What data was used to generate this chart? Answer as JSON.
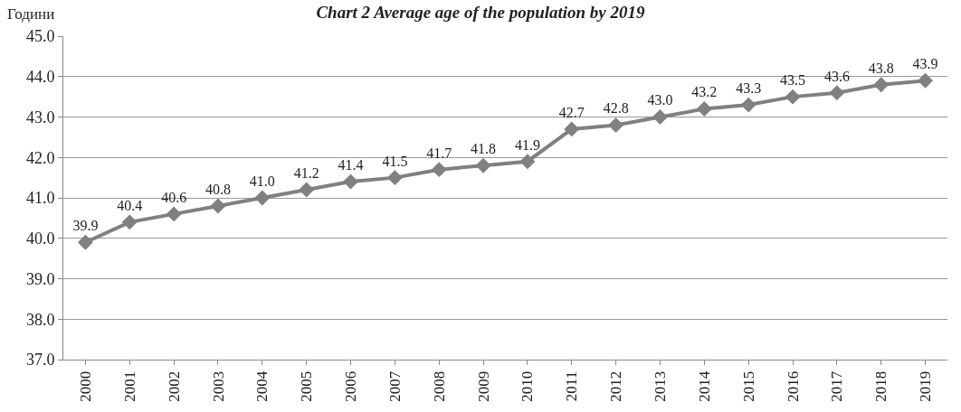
{
  "chart_data": {
    "type": "line",
    "title": "Chart 2 Average age of the population by 2019",
    "ylabel": "Години",
    "categories": [
      "2000",
      "2001",
      "2002",
      "2003",
      "2004",
      "2005",
      "2006",
      "2007",
      "2008",
      "2009",
      "2010",
      "2011",
      "2012",
      "2013",
      "2014",
      "2015",
      "2016",
      "2017",
      "2018",
      "2019"
    ],
    "series": [
      {
        "color": "#808080",
        "values": [
          39.9,
          40.4,
          40.6,
          40.8,
          41.0,
          41.2,
          41.4,
          41.5,
          41.7,
          41.8,
          41.9,
          42.7,
          42.8,
          43.0,
          43.2,
          43.3,
          43.5,
          43.6,
          43.8,
          43.9
        ]
      }
    ],
    "value_labels": [
      "39.9",
      "40.4",
      "40.6",
      "40.8",
      "41.0",
      "41.2",
      "41.4",
      "41.5",
      "41.7",
      "41.8",
      "41.9",
      "42.7",
      "42.8",
      "43.0",
      "43.2",
      "43.3",
      "43.5",
      "43.6",
      "43.8",
      "43.9"
    ],
    "ylim": [
      37,
      45
    ],
    "yticks": [
      {
        "value": 37,
        "label": "37.0"
      },
      {
        "value": 38,
        "label": "38.0"
      },
      {
        "value": 39,
        "label": "39.0"
      },
      {
        "value": 40,
        "label": "40.0"
      },
      {
        "value": 41,
        "label": "41.0"
      },
      {
        "value": 42,
        "label": "42.0"
      },
      {
        "value": 43,
        "label": "43.0"
      },
      {
        "value": 44,
        "label": "44.0"
      },
      {
        "value": 45,
        "label": "45.0"
      }
    ],
    "grid": "y",
    "marker": "diamond",
    "line_style": "solid"
  }
}
